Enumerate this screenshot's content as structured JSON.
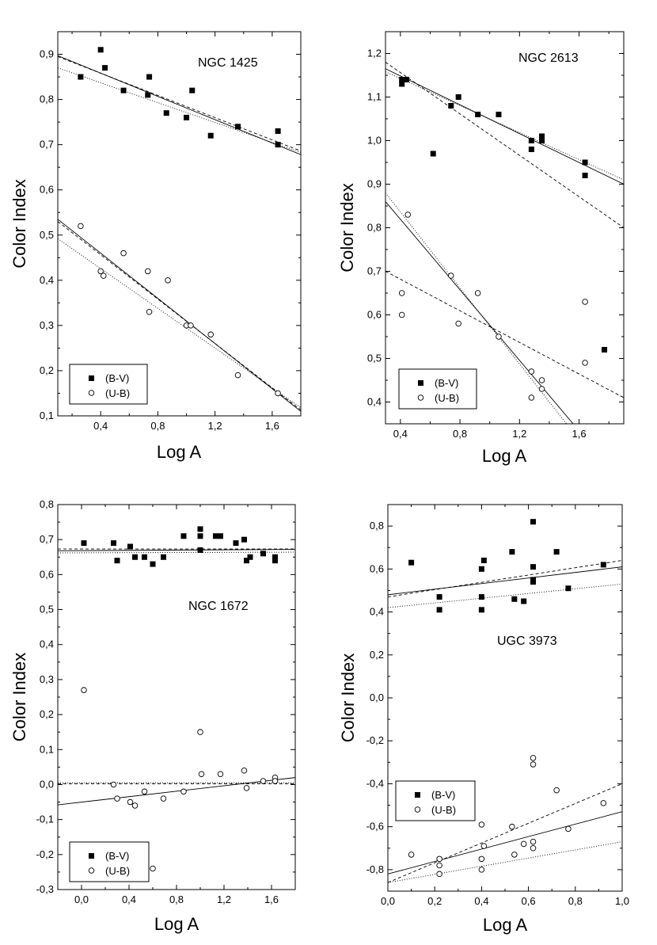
{
  "figure": {
    "xlabel": "Log A",
    "ylabel": "Color Index",
    "legend": [
      "(B-V)",
      "(U-B)"
    ]
  },
  "chart_data": [
    {
      "type": "scatter",
      "title": "NGC 1425",
      "xlabel": "Log A",
      "ylabel": "Color Index",
      "xlim": [
        0.1,
        1.8
      ],
      "ylim": [
        0.1,
        0.95
      ],
      "xticks": [
        "0,4",
        "0,8",
        "1,2",
        "1,6"
      ],
      "yticks": [
        "0,1",
        "0,2",
        "0,3",
        "0,4",
        "0,5",
        "0,6",
        "0,7",
        "0,8",
        "0,9"
      ],
      "legend_position": "bottom-left",
      "series": [
        {
          "name": "(B-V)",
          "marker": "filled-square",
          "x": [
            0.26,
            0.4,
            0.43,
            0.56,
            0.73,
            0.74,
            0.86,
            1.0,
            1.04,
            1.17,
            1.36,
            1.64,
            1.64
          ],
          "y": [
            0.85,
            0.91,
            0.87,
            0.82,
            0.81,
            0.85,
            0.77,
            0.76,
            0.82,
            0.72,
            0.74,
            0.73,
            0.7
          ]
        },
        {
          "name": "(U-B)",
          "marker": "open-circle",
          "x": [
            0.26,
            0.4,
            0.42,
            0.56,
            0.73,
            0.74,
            0.87,
            1.0,
            1.03,
            1.17,
            1.36,
            1.64
          ],
          "y": [
            0.52,
            0.42,
            0.41,
            0.46,
            0.42,
            0.33,
            0.4,
            0.3,
            0.3,
            0.28,
            0.19,
            0.15
          ]
        }
      ],
      "fits": [
        {
          "x": [
            0.1,
            1.8
          ],
          "y": [
            0.897,
            0.678
          ],
          "style": "solid"
        },
        {
          "x": [
            0.1,
            1.8
          ],
          "y": [
            0.895,
            0.686
          ],
          "style": "dashed"
        },
        {
          "x": [
            0.1,
            1.8
          ],
          "y": [
            0.87,
            0.683
          ],
          "style": "dotted"
        },
        {
          "x": [
            0.1,
            1.8
          ],
          "y": [
            0.535,
            0.11
          ],
          "style": "solid"
        },
        {
          "x": [
            0.1,
            1.8
          ],
          "y": [
            0.53,
            0.113
          ],
          "style": "dashed"
        },
        {
          "x": [
            0.1,
            1.8
          ],
          "y": [
            0.492,
            0.118
          ],
          "style": "dotted"
        }
      ]
    },
    {
      "type": "scatter",
      "title": "NGC 2613",
      "xlabel": "Log A",
      "ylabel": "Color Index",
      "xlim": [
        0.3,
        1.9
      ],
      "ylim": [
        0.35,
        1.25
      ],
      "xticks": [
        "0,4",
        "0,8",
        "1,2",
        "1,6"
      ],
      "yticks": [
        "0,4",
        "0,5",
        "0,6",
        "0,7",
        "0,8",
        "0,9",
        "1,0",
        "1,1",
        "1,2"
      ],
      "legend_position": "bottom-left",
      "series": [
        {
          "name": "(B-V)",
          "marker": "filled-square",
          "x": [
            0.41,
            0.41,
            0.44,
            0.62,
            0.74,
            0.79,
            0.92,
            1.06,
            1.28,
            1.28,
            1.35,
            1.35,
            1.64,
            1.64,
            1.77
          ],
          "y": [
            1.13,
            1.14,
            1.14,
            0.97,
            1.08,
            1.1,
            1.06,
            1.06,
            1.0,
            0.98,
            1.01,
            1.0,
            0.95,
            0.92,
            0.52
          ]
        },
        {
          "name": "(U-B)",
          "marker": "open-circle",
          "x": [
            0.41,
            0.41,
            0.45,
            0.74,
            0.79,
            0.92,
            1.06,
            1.28,
            1.28,
            1.35,
            1.35,
            1.64,
            1.64
          ],
          "y": [
            0.65,
            0.6,
            0.83,
            0.69,
            0.58,
            0.65,
            0.55,
            0.47,
            0.41,
            0.45,
            0.43,
            0.63,
            0.49
          ]
        }
      ],
      "fits": [
        {
          "x": [
            0.3,
            1.9
          ],
          "y": [
            1.165,
            0.9
          ],
          "style": "solid"
        },
        {
          "x": [
            0.3,
            1.9
          ],
          "y": [
            1.158,
            0.91
          ],
          "style": "dotted"
        },
        {
          "x": [
            0.3,
            1.9
          ],
          "y": [
            1.18,
            0.8
          ],
          "style": "dashed"
        },
        {
          "x": [
            0.3,
            1.56
          ],
          "y": [
            0.86,
            0.35
          ],
          "style": "solid"
        },
        {
          "x": [
            0.3,
            1.515
          ],
          "y": [
            0.88,
            0.35
          ],
          "style": "dotted"
        },
        {
          "x": [
            0.3,
            1.9
          ],
          "y": [
            0.7,
            0.41
          ],
          "style": "dashed"
        }
      ]
    },
    {
      "type": "scatter",
      "title": "NGC 1672",
      "xlabel": "Log A",
      "ylabel": "Color Index",
      "xlim": [
        -0.2,
        1.8
      ],
      "ylim": [
        -0.3,
        0.8
      ],
      "xticks": [
        "0,0",
        "0,4",
        "0,8",
        "1,2",
        "1,6"
      ],
      "yticks": [
        "-0,3",
        "-0,2",
        "-0,1",
        "0,0",
        "0,1",
        "0,2",
        "0,3",
        "0,4",
        "0,5",
        "0,6",
        "0,7",
        "0,8"
      ],
      "legend_position": "bottom-left",
      "series": [
        {
          "name": "(B-V)",
          "marker": "filled-square",
          "x": [
            0.02,
            0.27,
            0.3,
            0.41,
            0.45,
            0.53,
            0.6,
            0.69,
            0.86,
            1.0,
            1.0,
            1.0,
            1.13,
            1.17,
            1.3,
            1.37,
            1.39,
            1.42,
            1.53,
            1.63,
            1.63
          ],
          "y": [
            0.69,
            0.69,
            0.64,
            0.68,
            0.65,
            0.65,
            0.63,
            0.65,
            0.71,
            0.73,
            0.71,
            0.67,
            0.71,
            0.71,
            0.69,
            0.7,
            0.64,
            0.65,
            0.66,
            0.65,
            0.64
          ]
        },
        {
          "name": "(U-B)",
          "marker": "open-circle",
          "x": [
            0.02,
            0.27,
            0.3,
            0.41,
            0.45,
            0.53,
            0.6,
            0.69,
            0.86,
            1.0,
            1.01,
            1.17,
            1.37,
            1.39,
            1.53,
            1.63,
            1.63
          ],
          "y": [
            0.27,
            0.0,
            -0.04,
            -0.05,
            -0.06,
            -0.02,
            -0.24,
            -0.04,
            -0.02,
            0.15,
            0.03,
            0.03,
            0.04,
            -0.01,
            0.01,
            0.02,
            0.01
          ]
        }
      ],
      "fits": [
        {
          "x": [
            -0.2,
            1.8
          ],
          "y": [
            0.668,
            0.672
          ],
          "style": "solid"
        },
        {
          "x": [
            -0.2,
            1.8
          ],
          "y": [
            0.673,
            0.673
          ],
          "style": "dashed"
        },
        {
          "x": [
            -0.2,
            1.8
          ],
          "y": [
            0.662,
            0.664
          ],
          "style": "dotted"
        },
        {
          "x": [
            -0.2,
            1.8
          ],
          "y": [
            -0.058,
            0.02
          ],
          "style": "solid"
        },
        {
          "x": [
            -0.2,
            1.8
          ],
          "y": [
            0.002,
            0.002
          ],
          "style": "dashed"
        },
        {
          "x": [
            -0.2,
            1.8
          ],
          "y": [
            0.005,
            0.005
          ],
          "style": "dotted"
        }
      ]
    },
    {
      "type": "scatter",
      "title": "UGC 3973",
      "xlabel": "Log A",
      "ylabel": "Color Index",
      "xlim": [
        0.0,
        1.0
      ],
      "ylim": [
        -0.9,
        0.9
      ],
      "xticks": [
        "0,0",
        "0,2",
        "0,4",
        "0,6",
        "0,8",
        "1,0"
      ],
      "yticks": [
        "-0,8",
        "-0,6",
        "-0,4",
        "-0,2",
        "0,0",
        "0,2",
        "0,4",
        "0,6",
        "0,8"
      ],
      "legend_position": "bottom-left",
      "series": [
        {
          "name": "(B-V)",
          "marker": "filled-square",
          "x": [
            0.1,
            0.22,
            0.22,
            0.4,
            0.4,
            0.4,
            0.41,
            0.53,
            0.54,
            0.58,
            0.62,
            0.62,
            0.62,
            0.62,
            0.72,
            0.77,
            0.92
          ],
          "y": [
            0.63,
            0.47,
            0.41,
            0.6,
            0.47,
            0.41,
            0.64,
            0.68,
            0.46,
            0.45,
            0.82,
            0.61,
            0.55,
            0.54,
            0.68,
            0.51,
            0.62
          ]
        },
        {
          "name": "(U-B)",
          "marker": "open-circle",
          "x": [
            0.1,
            0.22,
            0.22,
            0.22,
            0.4,
            0.4,
            0.4,
            0.41,
            0.53,
            0.54,
            0.58,
            0.62,
            0.62,
            0.62,
            0.62,
            0.72,
            0.77,
            0.92
          ],
          "y": [
            -0.73,
            -0.75,
            -0.78,
            -0.82,
            -0.59,
            -0.75,
            -0.8,
            -0.69,
            -0.6,
            -0.73,
            -0.68,
            -0.28,
            -0.31,
            -0.67,
            -0.7,
            -0.43,
            -0.61,
            -0.49
          ]
        }
      ],
      "fits": [
        {
          "x": [
            0.0,
            1.0
          ],
          "y": [
            0.48,
            0.61
          ],
          "style": "solid"
        },
        {
          "x": [
            0.0,
            1.0
          ],
          "y": [
            0.47,
            0.64
          ],
          "style": "dashed"
        },
        {
          "x": [
            0.0,
            1.0
          ],
          "y": [
            0.42,
            0.53
          ],
          "style": "dotted"
        },
        {
          "x": [
            0.0,
            1.0
          ],
          "y": [
            -0.82,
            -0.53
          ],
          "style": "solid"
        },
        {
          "x": [
            0.0,
            1.0
          ],
          "y": [
            -0.86,
            -0.4
          ],
          "style": "dashed"
        },
        {
          "x": [
            0.0,
            1.0
          ],
          "y": [
            -0.86,
            -0.67
          ],
          "style": "dotted"
        }
      ]
    }
  ]
}
